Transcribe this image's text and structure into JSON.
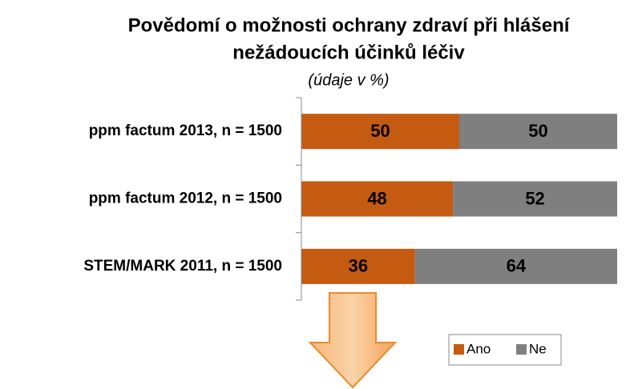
{
  "chart_data": {
    "type": "stacked_barh",
    "title": [
      "Povědomí o možnosti ochrany zdraví při hlášení",
      "nežádoucích účinků léčiv"
    ],
    "subtitle": "(údaje v %)",
    "categories": [
      "ppm factum 2013, n = 1500",
      "ppm factum 2012, n = 1500",
      "STEM/MARK 2011, n = 1500"
    ],
    "series": [
      {
        "name": "Ano",
        "color": "#c55a11",
        "values": [
          50,
          48,
          36
        ]
      },
      {
        "name": "Ne",
        "color": "#7f7f7f",
        "values": [
          50,
          52,
          64
        ]
      }
    ],
    "xlim": [
      0,
      100
    ],
    "legend": "bottom-right"
  }
}
